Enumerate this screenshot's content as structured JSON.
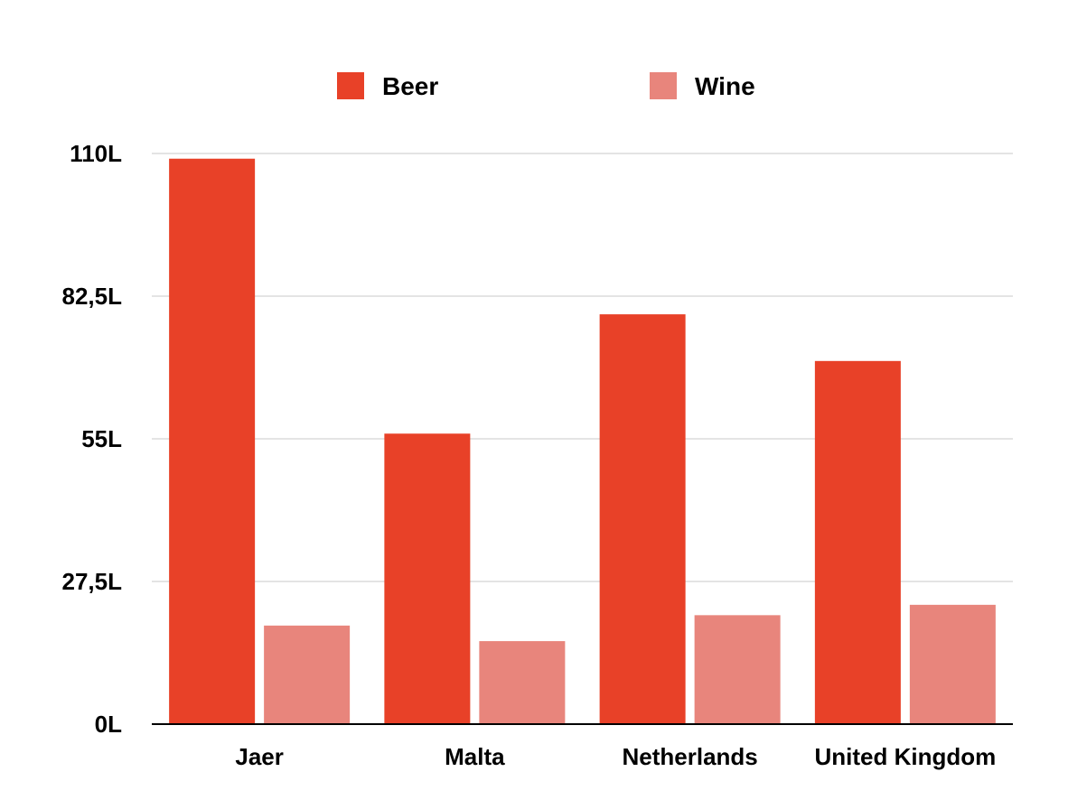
{
  "chart_data": {
    "type": "bar",
    "categories": [
      "Jaer",
      "Malta",
      "Netherlands",
      "United Kingdom"
    ],
    "series": [
      {
        "name": "Beer",
        "color": "#e84128",
        "values": [
          109,
          56,
          79,
          70
        ]
      },
      {
        "name": "Wine",
        "color": "#e8857c",
        "values": [
          19,
          16,
          21,
          23
        ]
      }
    ],
    "y_ticks": [
      0,
      27.5,
      55,
      82.5,
      110
    ],
    "y_tick_labels": [
      "0L",
      "27,5L",
      "55L",
      "82,5L",
      "110L"
    ],
    "ylim": [
      0,
      110
    ],
    "grid": true,
    "legend_position": "top",
    "title": "",
    "xlabel": "",
    "ylabel": ""
  }
}
